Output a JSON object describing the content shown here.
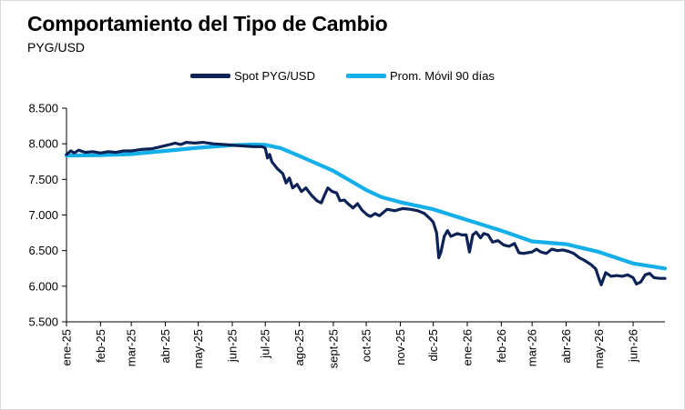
{
  "title": "Comportamiento  del Tipo de Cambio",
  "subtitle": "PYG/USD",
  "colors": {
    "spot": "#0d2356",
    "avg": "#14aee8",
    "axis": "#000000"
  },
  "chart_data": {
    "type": "line",
    "title": "Comportamiento  del Tipo de Cambio",
    "subtitle": "PYG/USD",
    "legend_position": "top",
    "grid": false,
    "xlabel": "",
    "ylabel": "",
    "ylim": [
      5500,
      8500
    ],
    "yticks": [
      5500,
      6000,
      6500,
      7000,
      7500,
      8000,
      8500
    ],
    "ytick_labels": [
      "5.500",
      "6.000",
      "6.500",
      "7.000",
      "7.500",
      "8.000",
      "8.500"
    ],
    "xlim": [
      "2025-01-01",
      "2026-06-30"
    ],
    "xticks": [
      "2025-01-01",
      "2025-02-01",
      "2025-03-01",
      "2025-04-01",
      "2025-05-01",
      "2025-06-01",
      "2025-07-01",
      "2025-08-01",
      "2025-09-01",
      "2025-10-01",
      "2025-11-01",
      "2025-12-01",
      "2026-01-01",
      "2026-02-01",
      "2026-03-01",
      "2026-04-01",
      "2026-05-01",
      "2026-06-01"
    ],
    "xtick_labels": [
      "ene-25",
      "feb-25",
      "mar-25",
      "abr-25",
      "may-25",
      "jun-25",
      "jul-25",
      "ago-25",
      "sept-25",
      "oct-25",
      "nov-25",
      "dic-25",
      "ene-26",
      "feb-26",
      "mar-26",
      "abr-26",
      "may-26",
      "jun-26"
    ],
    "series": [
      {
        "name": "Spot PYG/USD",
        "points": [
          [
            "2025-01-01",
            7850
          ],
          [
            "2025-01-05",
            7900
          ],
          [
            "2025-01-08",
            7870
          ],
          [
            "2025-01-12",
            7910
          ],
          [
            "2025-01-18",
            7880
          ],
          [
            "2025-01-25",
            7890
          ],
          [
            "2025-02-01",
            7870
          ],
          [
            "2025-02-08",
            7890
          ],
          [
            "2025-02-15",
            7880
          ],
          [
            "2025-02-22",
            7900
          ],
          [
            "2025-03-01",
            7900
          ],
          [
            "2025-03-10",
            7920
          ],
          [
            "2025-03-20",
            7930
          ],
          [
            "2025-03-28",
            7960
          ],
          [
            "2025-04-05",
            7990
          ],
          [
            "2025-04-10",
            8010
          ],
          [
            "2025-04-15",
            7990
          ],
          [
            "2025-04-20",
            8020
          ],
          [
            "2025-04-28",
            8010
          ],
          [
            "2025-05-05",
            8020
          ],
          [
            "2025-05-15",
            8000
          ],
          [
            "2025-05-25",
            7990
          ],
          [
            "2025-06-01",
            7980
          ],
          [
            "2025-06-10",
            7970
          ],
          [
            "2025-06-20",
            7960
          ],
          [
            "2025-06-28",
            7960
          ],
          [
            "2025-07-01",
            7940
          ],
          [
            "2025-07-03",
            7800
          ],
          [
            "2025-07-05",
            7850
          ],
          [
            "2025-07-07",
            7750
          ],
          [
            "2025-07-12",
            7650
          ],
          [
            "2025-07-17",
            7580
          ],
          [
            "2025-07-20",
            7450
          ],
          [
            "2025-07-23",
            7520
          ],
          [
            "2025-07-26",
            7380
          ],
          [
            "2025-07-30",
            7430
          ],
          [
            "2025-08-03",
            7330
          ],
          [
            "2025-08-07",
            7380
          ],
          [
            "2025-08-12",
            7280
          ],
          [
            "2025-08-17",
            7200
          ],
          [
            "2025-08-21",
            7170
          ],
          [
            "2025-08-24",
            7280
          ],
          [
            "2025-08-27",
            7380
          ],
          [
            "2025-08-31",
            7330
          ],
          [
            "2025-09-04",
            7310
          ],
          [
            "2025-09-07",
            7200
          ],
          [
            "2025-09-11",
            7210
          ],
          [
            "2025-09-15",
            7150
          ],
          [
            "2025-09-19",
            7100
          ],
          [
            "2025-09-23",
            7160
          ],
          [
            "2025-09-27",
            7070
          ],
          [
            "2025-10-02",
            7000
          ],
          [
            "2025-10-05",
            6980
          ],
          [
            "2025-10-09",
            7020
          ],
          [
            "2025-10-13",
            6990
          ],
          [
            "2025-10-20",
            7080
          ],
          [
            "2025-10-27",
            7060
          ],
          [
            "2025-11-03",
            7090
          ],
          [
            "2025-11-10",
            7080
          ],
          [
            "2025-11-17",
            7060
          ],
          [
            "2025-11-23",
            7020
          ],
          [
            "2025-11-28",
            6950
          ],
          [
            "2025-12-01",
            6900
          ],
          [
            "2025-12-04",
            6750
          ],
          [
            "2025-12-06",
            6400
          ],
          [
            "2025-12-08",
            6480
          ],
          [
            "2025-12-11",
            6700
          ],
          [
            "2025-12-14",
            6780
          ],
          [
            "2025-12-17",
            6700
          ],
          [
            "2025-12-20",
            6720
          ],
          [
            "2025-12-23",
            6740
          ],
          [
            "2025-12-27",
            6720
          ],
          [
            "2025-12-31",
            6720
          ],
          [
            "2026-01-03",
            6480
          ],
          [
            "2026-01-06",
            6720
          ],
          [
            "2026-01-09",
            6760
          ],
          [
            "2026-01-13",
            6680
          ],
          [
            "2026-01-16",
            6740
          ],
          [
            "2026-01-20",
            6720
          ],
          [
            "2026-01-24",
            6620
          ],
          [
            "2026-01-29",
            6640
          ],
          [
            "2026-02-03",
            6580
          ],
          [
            "2026-02-08",
            6560
          ],
          [
            "2026-02-13",
            6600
          ],
          [
            "2026-02-17",
            6470
          ],
          [
            "2026-02-21",
            6460
          ],
          [
            "2026-02-25",
            6470
          ],
          [
            "2026-03-01",
            6480
          ],
          [
            "2026-03-05",
            6520
          ],
          [
            "2026-03-09",
            6480
          ],
          [
            "2026-03-14",
            6460
          ],
          [
            "2026-03-19",
            6520
          ],
          [
            "2026-03-24",
            6500
          ],
          [
            "2026-03-29",
            6510
          ],
          [
            "2026-04-03",
            6490
          ],
          [
            "2026-04-08",
            6460
          ],
          [
            "2026-04-13",
            6400
          ],
          [
            "2026-04-18",
            6360
          ],
          [
            "2026-04-24",
            6300
          ],
          [
            "2026-04-28",
            6240
          ],
          [
            "2026-05-01",
            6100
          ],
          [
            "2026-05-03",
            6020
          ],
          [
            "2026-05-07",
            6190
          ],
          [
            "2026-05-12",
            6140
          ],
          [
            "2026-05-17",
            6150
          ],
          [
            "2026-05-22",
            6140
          ],
          [
            "2026-05-27",
            6160
          ],
          [
            "2026-06-01",
            6120
          ],
          [
            "2026-06-04",
            6030
          ],
          [
            "2026-06-08",
            6060
          ],
          [
            "2026-06-12",
            6160
          ],
          [
            "2026-06-16",
            6180
          ],
          [
            "2026-06-20",
            6120
          ],
          [
            "2026-06-25",
            6110
          ],
          [
            "2026-06-30",
            6110
          ]
        ]
      },
      {
        "name": "Prom. Móvil 90 días",
        "points": [
          [
            "2025-01-01",
            7835
          ],
          [
            "2025-02-01",
            7840
          ],
          [
            "2025-03-01",
            7855
          ],
          [
            "2025-04-01",
            7900
          ],
          [
            "2025-05-01",
            7945
          ],
          [
            "2025-06-01",
            7980
          ],
          [
            "2025-06-20",
            7990
          ],
          [
            "2025-07-01",
            7985
          ],
          [
            "2025-07-15",
            7940
          ],
          [
            "2025-08-01",
            7830
          ],
          [
            "2025-09-01",
            7620
          ],
          [
            "2025-10-01",
            7350
          ],
          [
            "2025-10-15",
            7250
          ],
          [
            "2025-11-01",
            7180
          ],
          [
            "2025-12-01",
            7080
          ],
          [
            "2026-01-01",
            6930
          ],
          [
            "2026-02-01",
            6780
          ],
          [
            "2026-03-01",
            6630
          ],
          [
            "2026-04-01",
            6590
          ],
          [
            "2026-05-01",
            6480
          ],
          [
            "2026-06-01",
            6320
          ],
          [
            "2026-06-30",
            6250
          ]
        ]
      }
    ]
  }
}
